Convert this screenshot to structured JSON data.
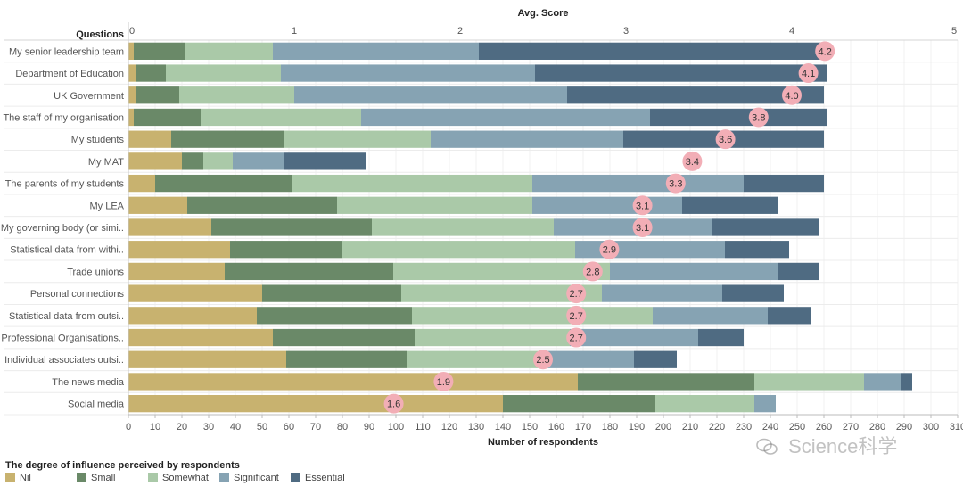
{
  "chart_data": {
    "type": "bar",
    "orientation": "horizontal",
    "stacked": true,
    "row_header": "Questions",
    "top_axis_title": "Avg. Score",
    "top_axis_range": [
      0,
      5
    ],
    "top_ticks": [
      "0",
      "1",
      "2",
      "3",
      "4",
      "5"
    ],
    "xlabel": "Number of respondents",
    "xlim": [
      0,
      310
    ],
    "x_ticks": [
      0,
      10,
      20,
      30,
      40,
      50,
      60,
      70,
      80,
      90,
      100,
      110,
      120,
      130,
      140,
      150,
      160,
      170,
      180,
      190,
      200,
      210,
      220,
      230,
      240,
      250,
      260,
      270,
      280,
      290,
      300,
      310
    ],
    "categories": [
      "My senior leadership team",
      "Department of Education",
      "UK Government",
      "The staff of my organisation",
      "My students",
      "My MAT",
      "The parents of my students",
      "My LEA",
      "My governing body (or simi..",
      "Statistical data from withi..",
      "Trade unions",
      "Personal connections",
      "Statistical data from outsi..",
      "Professional Organisations..",
      "Individual associates outsi..",
      "The news media",
      "Social media"
    ],
    "series": [
      {
        "name": "Nil",
        "color": "#c8b26f",
        "values": [
          2,
          3,
          3,
          2,
          16,
          20,
          10,
          22,
          31,
          38,
          36,
          50,
          48,
          54,
          59,
          168,
          140
        ]
      },
      {
        "name": "Small",
        "color": "#6a8968",
        "values": [
          19,
          11,
          16,
          25,
          42,
          8,
          51,
          56,
          60,
          42,
          63,
          52,
          58,
          53,
          45,
          66,
          57
        ]
      },
      {
        "name": "Somewhat",
        "color": "#aac9a8",
        "values": [
          33,
          43,
          43,
          60,
          55,
          11,
          90,
          73,
          68,
          87,
          81,
          75,
          90,
          58,
          50,
          41,
          37
        ]
      },
      {
        "name": "Significant",
        "color": "#86a3b3",
        "values": [
          77,
          95,
          102,
          108,
          72,
          19,
          79,
          56,
          59,
          56,
          63,
          45,
          43,
          48,
          35,
          14,
          8
        ]
      },
      {
        "name": "Essential",
        "color": "#4f6b82",
        "values": [
          130,
          109,
          96,
          66,
          75,
          31,
          30,
          36,
          40,
          24,
          15,
          23,
          16,
          17,
          16,
          4,
          0
        ]
      }
    ],
    "avg_scores": [
      4.2,
      4.1,
      4.0,
      3.8,
      3.6,
      3.4,
      3.3,
      3.1,
      3.1,
      2.9,
      2.8,
      2.7,
      2.7,
      2.7,
      2.5,
      1.9,
      1.6
    ],
    "avg_labels": [
      "4.2",
      "4.1",
      "4.0",
      "3.8",
      "3.6",
      "3.4",
      "3.3",
      "3.1",
      "3.1",
      "2.9",
      "2.8",
      "2.7",
      "2.7",
      "2.7",
      "2.5",
      "1.9",
      "1.6"
    ],
    "bubble_color": "#f2aeb6",
    "legend_title": "The degree of influence perceived by respondents"
  },
  "watermark": {
    "icon": "wechat-icon",
    "text": "Science科学"
  }
}
